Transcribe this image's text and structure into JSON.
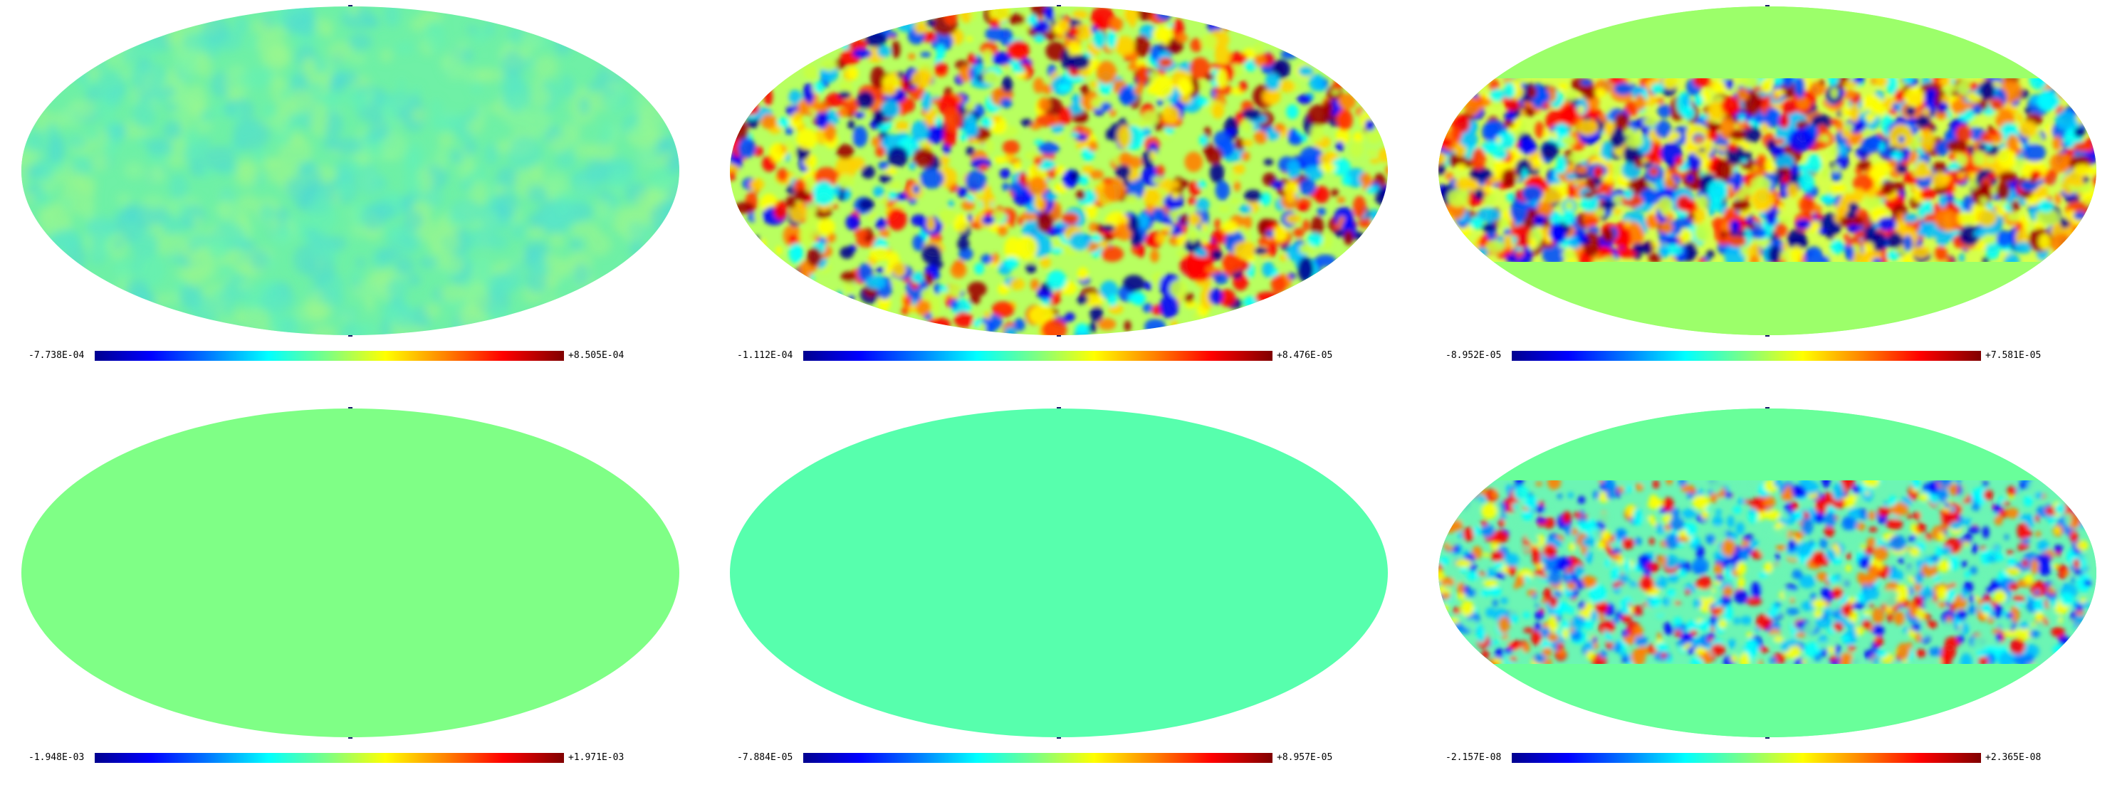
{
  "colormap": [
    "#00008f",
    "#0000ff",
    "#0080ff",
    "#00ffff",
    "#80ff80",
    "#ffff00",
    "#ff8000",
    "#ff0000",
    "#800000"
  ],
  "panels": [
    {
      "id": "p1",
      "min_label": "-7.738E-04",
      "max_label": "+8.505E-04",
      "background": "#6ff0a6",
      "pattern": "faint",
      "mask": "none"
    },
    {
      "id": "p2",
      "min_label": "-1.112E-04",
      "max_label": "+8.476E-05",
      "background": "#b8ff60",
      "pattern": "strong",
      "mask": "none"
    },
    {
      "id": "p3",
      "min_label": "-8.952E-05",
      "max_label": "+7.581E-05",
      "background": "#9cff6a",
      "pattern": "strong",
      "mask": "band"
    },
    {
      "id": "p4",
      "min_label": "-1.948E-03",
      "max_label": "+1.971E-03",
      "background": "#7fff86",
      "pattern": "none",
      "mask": "none"
    },
    {
      "id": "p5",
      "min_label": "-7.884E-05",
      "max_label": "+8.957E-05",
      "background": "#57ffad",
      "pattern": "none",
      "mask": "none"
    },
    {
      "id": "p6",
      "min_label": "-2.157E-08",
      "max_label": "+2.365E-08",
      "background": "#69ff9a",
      "pattern": "medium",
      "mask": "band"
    }
  ]
}
